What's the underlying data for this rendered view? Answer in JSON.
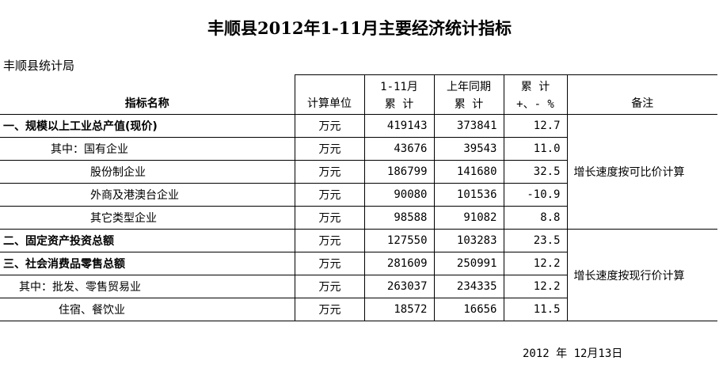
{
  "title": "丰顺县2012年1-11月主要经济统计指标",
  "org": "丰顺县统计局",
  "header": {
    "name": "指标名称",
    "unit": "计算单位",
    "current_line1": "1-11月",
    "current_line2": "累 计",
    "prev_line1": "上年同期",
    "prev_line2": "累 计",
    "growth_line1": "累 计",
    "growth_line2": "+、- %",
    "note": "备注"
  },
  "rows": [
    {
      "name": "一、规模以上工业总产值(现价)",
      "unit": "万元",
      "current": "419143",
      "prev": "373841",
      "growth": "12.7"
    },
    {
      "name": "其中：国有企业",
      "unit": "万元",
      "current": "43676",
      "prev": "39543",
      "growth": "11.0"
    },
    {
      "name": "股份制企业",
      "unit": "万元",
      "current": "186799",
      "prev": "141680",
      "growth": "32.5"
    },
    {
      "name": "外商及港澳台企业",
      "unit": "万元",
      "current": "90080",
      "prev": "101536",
      "growth": "-10.9"
    },
    {
      "name": "其它类型企业",
      "unit": "万元",
      "current": "98588",
      "prev": "91082",
      "growth": "8.8"
    },
    {
      "name": "二、固定资产投资总额",
      "unit": "万元",
      "current": "127550",
      "prev": "103283",
      "growth": "23.5"
    },
    {
      "name": "三、社会消费品零售总额",
      "unit": "万元",
      "current": "281609",
      "prev": "250991",
      "growth": "12.2"
    },
    {
      "name": "其中：批发、零售贸易业",
      "unit": "万元",
      "current": "263037",
      "prev": "234335",
      "growth": "12.2"
    },
    {
      "name": "住宿、餐饮业",
      "unit": "万元",
      "current": "18572",
      "prev": "16656",
      "growth": "11.5"
    }
  ],
  "notes": {
    "industry": "增长速度按可比价计算",
    "retail": "增长速度按现行价计算"
  },
  "date": "2012 年 12月13日"
}
